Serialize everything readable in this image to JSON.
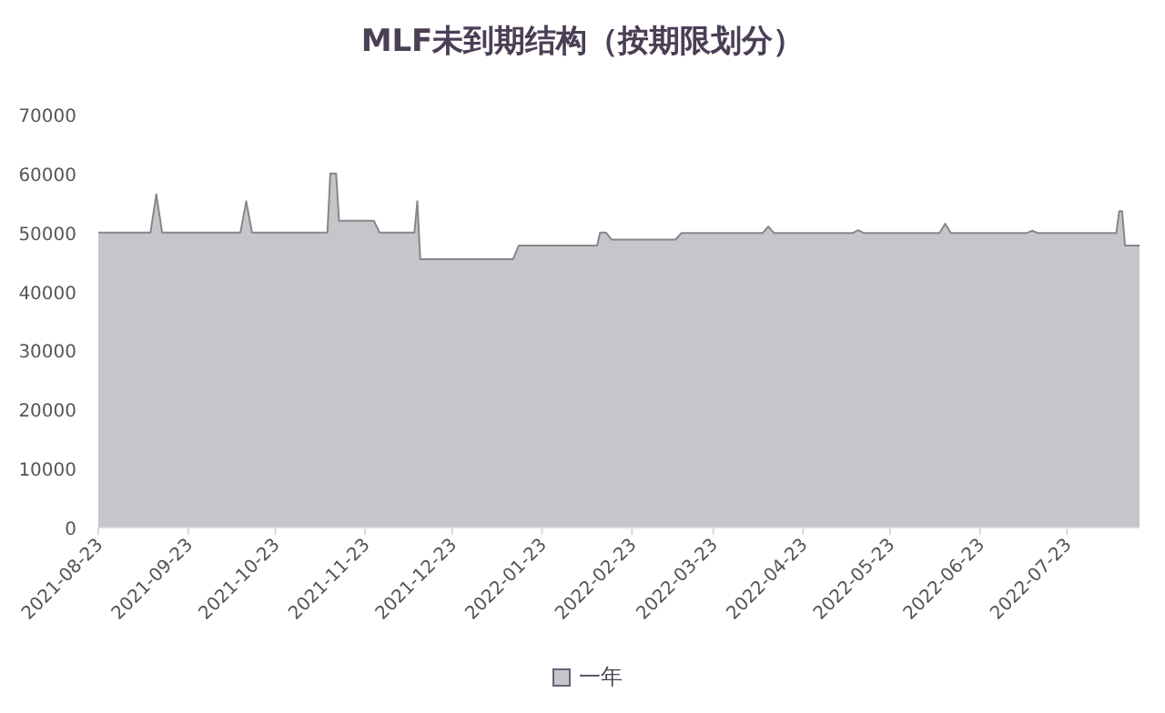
{
  "chart_data": {
    "type": "area",
    "title": "MLF未到期结构（按期限划分）",
    "legend": "bottom",
    "grid": false,
    "x": [
      "2021-08-23",
      "2021-09-10",
      "2021-09-12",
      "2021-09-14",
      "2021-10-11",
      "2021-10-13",
      "2021-10-15",
      "2021-11-10",
      "2021-11-11",
      "2021-11-13",
      "2021-11-14",
      "2021-11-26",
      "2021-11-28",
      "2021-12-10",
      "2021-12-11",
      "2021-12-12",
      "2022-01-13",
      "2022-01-15",
      "2022-02-11",
      "2022-02-12",
      "2022-02-14",
      "2022-02-16",
      "2022-03-10",
      "2022-03-12",
      "2022-04-09",
      "2022-04-11",
      "2022-04-13",
      "2022-05-10",
      "2022-05-12",
      "2022-05-14",
      "2022-06-09",
      "2022-06-11",
      "2022-06-13",
      "2022-07-09",
      "2022-07-11",
      "2022-07-13",
      "2022-08-09",
      "2022-08-10",
      "2022-08-11",
      "2022-08-12",
      "2022-08-17"
    ],
    "series": [
      {
        "name": "一年",
        "color": "#c6c6ca",
        "values": [
          50000,
          50000,
          56500,
          50000,
          50000,
          55300,
          50000,
          50000,
          60000,
          60000,
          52000,
          52000,
          50000,
          50000,
          55300,
          45500,
          45500,
          47800,
          47800,
          50000,
          50000,
          48800,
          48800,
          49900,
          49900,
          51000,
          49900,
          49900,
          50400,
          49900,
          49900,
          51500,
          49900,
          49900,
          50300,
          49900,
          49900,
          53600,
          53600,
          47800,
          47800
        ]
      }
    ],
    "xlim": [
      "2021-08-23",
      "2022-08-17"
    ],
    "xticks": [
      "2021-08-23",
      "2021-09-23",
      "2021-10-23",
      "2021-11-23",
      "2021-12-23",
      "2022-01-23",
      "2022-02-23",
      "2022-03-23",
      "2022-04-23",
      "2022-05-23",
      "2022-06-23",
      "2022-07-23"
    ],
    "ylim": [
      0,
      70000
    ],
    "yticks": [
      0,
      10000,
      20000,
      30000,
      40000,
      50000,
      60000,
      70000
    ]
  }
}
